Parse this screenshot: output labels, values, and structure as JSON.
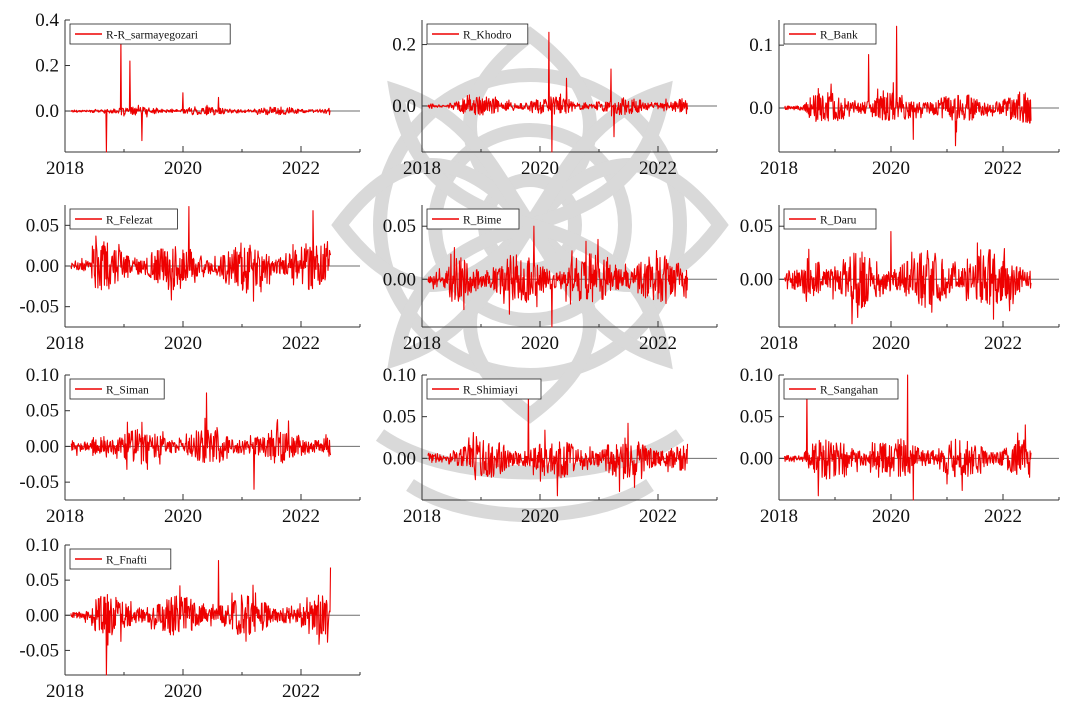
{
  "figure": {
    "series_color": "#ee0000",
    "zero_line_color": "#6e6e6e",
    "axis_color": "#333333"
  },
  "chart_data": [
    {
      "type": "line",
      "legend": "R-R_sarmayegozari",
      "legend_placement": "top-left",
      "x_range": [
        2018.0,
        2023.0
      ],
      "x_ticks": [
        2018,
        2020,
        2022
      ],
      "x_tick_labels": [
        "2018",
        "2020",
        "2022"
      ],
      "data_x_range": [
        2018.1,
        2022.5
      ],
      "y_range": [
        -0.18,
        0.4
      ],
      "y_ticks": [
        0.0,
        0.2,
        0.4
      ],
      "y_tick_labels": [
        "0.0",
        "0.2",
        "0.4"
      ],
      "typical_amplitude": 0.018,
      "spikes": [
        {
          "x": 2018.7,
          "y": -0.18
        },
        {
          "x": 2018.95,
          "y": 0.31
        },
        {
          "x": 2019.1,
          "y": 0.22
        },
        {
          "x": 2019.3,
          "y": -0.13
        },
        {
          "x": 2020.0,
          "y": 0.08
        },
        {
          "x": 2020.6,
          "y": 0.06
        }
      ]
    },
    {
      "type": "line",
      "legend": "R_Khodro",
      "legend_placement": "top-left",
      "x_range": [
        2018.0,
        2023.0
      ],
      "x_ticks": [
        2018,
        2020,
        2022
      ],
      "x_tick_labels": [
        "2018",
        "2020",
        "2022"
      ],
      "data_x_range": [
        2018.1,
        2022.5
      ],
      "y_range": [
        -0.15,
        0.28
      ],
      "y_ticks": [
        0.0,
        0.2
      ],
      "y_tick_labels": [
        "0.0",
        "0.2"
      ],
      "typical_amplitude": 0.03,
      "spikes": [
        {
          "x": 2020.15,
          "y": 0.24
        },
        {
          "x": 2020.2,
          "y": -0.15
        },
        {
          "x": 2020.45,
          "y": 0.09
        },
        {
          "x": 2021.2,
          "y": 0.12
        },
        {
          "x": 2021.25,
          "y": -0.1
        }
      ]
    },
    {
      "type": "line",
      "legend": "R_Bank",
      "legend_placement": "top-left",
      "x_range": [
        2018.0,
        2023.0
      ],
      "x_ticks": [
        2018,
        2020,
        2022
      ],
      "x_tick_labels": [
        "2018",
        "2020",
        "2022"
      ],
      "data_x_range": [
        2018.1,
        2022.5
      ],
      "y_range": [
        -0.07,
        0.14
      ],
      "y_ticks": [
        0.0,
        0.1
      ],
      "y_tick_labels": [
        "0.0",
        "0.1"
      ],
      "typical_amplitude": 0.025,
      "spikes": [
        {
          "x": 2019.6,
          "y": 0.085
        },
        {
          "x": 2020.1,
          "y": 0.13
        },
        {
          "x": 2020.4,
          "y": -0.05
        },
        {
          "x": 2021.15,
          "y": -0.06
        }
      ]
    },
    {
      "type": "line",
      "legend": "R_Felezat",
      "legend_placement": "top-left",
      "x_range": [
        2018.0,
        2023.0
      ],
      "x_ticks": [
        2018,
        2020,
        2022
      ],
      "x_tick_labels": [
        "2018",
        "2020",
        "2022"
      ],
      "data_x_range": [
        2018.1,
        2022.5
      ],
      "y_range": [
        -0.075,
        0.075
      ],
      "y_ticks": [
        -0.05,
        0.0,
        0.05
      ],
      "y_tick_labels": [
        "-0.05",
        "0.00",
        "0.05"
      ],
      "typical_amplitude": 0.03,
      "spikes": [
        {
          "x": 2020.1,
          "y": 0.073
        },
        {
          "x": 2022.2,
          "y": 0.068
        },
        {
          "x": 2022.45,
          "y": 0.03
        }
      ]
    },
    {
      "type": "line",
      "legend": "R_Bime",
      "legend_placement": "top-left",
      "x_range": [
        2018.0,
        2023.0
      ],
      "x_ticks": [
        2018,
        2020,
        2022
      ],
      "x_tick_labels": [
        "2018",
        "2020",
        "2022"
      ],
      "data_x_range": [
        2018.1,
        2022.5
      ],
      "y_range": [
        -0.045,
        0.07
      ],
      "y_ticks": [
        0.0,
        0.05
      ],
      "y_tick_labels": [
        "0.00",
        "0.05"
      ],
      "typical_amplitude": 0.025,
      "spikes": [
        {
          "x": 2019.9,
          "y": 0.05
        },
        {
          "x": 2020.2,
          "y": -0.045
        }
      ]
    },
    {
      "type": "line",
      "legend": "R_Daru",
      "legend_placement": "top-left",
      "x_range": [
        2018.0,
        2023.0
      ],
      "x_ticks": [
        2018,
        2020,
        2022
      ],
      "x_tick_labels": [
        "2018",
        "2020",
        "2022"
      ],
      "data_x_range": [
        2018.1,
        2022.5
      ],
      "y_range": [
        -0.045,
        0.07
      ],
      "y_ticks": [
        0.0,
        0.05
      ],
      "y_tick_labels": [
        "0.00",
        "0.05"
      ],
      "typical_amplitude": 0.03,
      "spikes": [
        {
          "x": 2020.0,
          "y": 0.045
        },
        {
          "x": 2019.3,
          "y": -0.042
        }
      ]
    },
    {
      "type": "line",
      "legend": "R_Siman",
      "legend_placement": "top-left",
      "x_range": [
        2018.0,
        2023.0
      ],
      "x_ticks": [
        2018,
        2020,
        2022
      ],
      "x_tick_labels": [
        "2018",
        "2020",
        "2022"
      ],
      "data_x_range": [
        2018.1,
        2022.5
      ],
      "y_range": [
        -0.075,
        0.1
      ],
      "y_ticks": [
        -0.05,
        0.0,
        0.05,
        0.1
      ],
      "y_tick_labels": [
        "-0.05",
        "0.00",
        "0.05",
        "0.10"
      ],
      "typical_amplitude": 0.025,
      "spikes": [
        {
          "x": 2020.4,
          "y": 0.075
        },
        {
          "x": 2021.2,
          "y": -0.06
        }
      ]
    },
    {
      "type": "line",
      "legend": "R_Shimiayi",
      "legend_placement": "top-left",
      "x_range": [
        2018.0,
        2023.0
      ],
      "x_ticks": [
        2018,
        2020,
        2022
      ],
      "x_tick_labels": [
        "2018",
        "2020",
        "2022"
      ],
      "data_x_range": [
        2018.1,
        2022.5
      ],
      "y_range": [
        -0.05,
        0.1
      ],
      "y_ticks": [
        0.0,
        0.05,
        0.1
      ],
      "y_tick_labels": [
        "0.00",
        "0.05",
        "0.10"
      ],
      "typical_amplitude": 0.025,
      "spikes": [
        {
          "x": 2019.8,
          "y": 0.08
        },
        {
          "x": 2020.3,
          "y": -0.045
        }
      ]
    },
    {
      "type": "line",
      "legend": "R_Sangahan",
      "legend_placement": "top-left",
      "x_range": [
        2018.0,
        2023.0
      ],
      "x_ticks": [
        2018,
        2020,
        2022
      ],
      "x_tick_labels": [
        "2018",
        "2020",
        "2022"
      ],
      "data_x_range": [
        2018.1,
        2022.5
      ],
      "y_range": [
        -0.05,
        0.1
      ],
      "y_ticks": [
        0.0,
        0.05,
        0.1
      ],
      "y_tick_labels": [
        "0.00",
        "0.05",
        "0.10"
      ],
      "typical_amplitude": 0.025,
      "spikes": [
        {
          "x": 2018.5,
          "y": 0.08
        },
        {
          "x": 2020.3,
          "y": 0.1
        },
        {
          "x": 2020.4,
          "y": -0.05
        },
        {
          "x": 2018.7,
          "y": -0.045
        }
      ]
    },
    {
      "type": "line",
      "legend": "R_Fnafti",
      "legend_placement": "top-left",
      "x_range": [
        2018.0,
        2023.0
      ],
      "x_ticks": [
        2018,
        2020,
        2022
      ],
      "x_tick_labels": [
        "2018",
        "2020",
        "2022"
      ],
      "data_x_range": [
        2018.1,
        2022.5
      ],
      "y_range": [
        -0.085,
        0.1
      ],
      "y_ticks": [
        -0.05,
        0.0,
        0.05,
        0.1
      ],
      "y_tick_labels": [
        "-0.05",
        "0.00",
        "0.05",
        "0.10"
      ],
      "typical_amplitude": 0.03,
      "spikes": [
        {
          "x": 2018.7,
          "y": -0.085
        },
        {
          "x": 2020.6,
          "y": 0.078
        },
        {
          "x": 2022.5,
          "y": 0.068
        }
      ]
    }
  ]
}
